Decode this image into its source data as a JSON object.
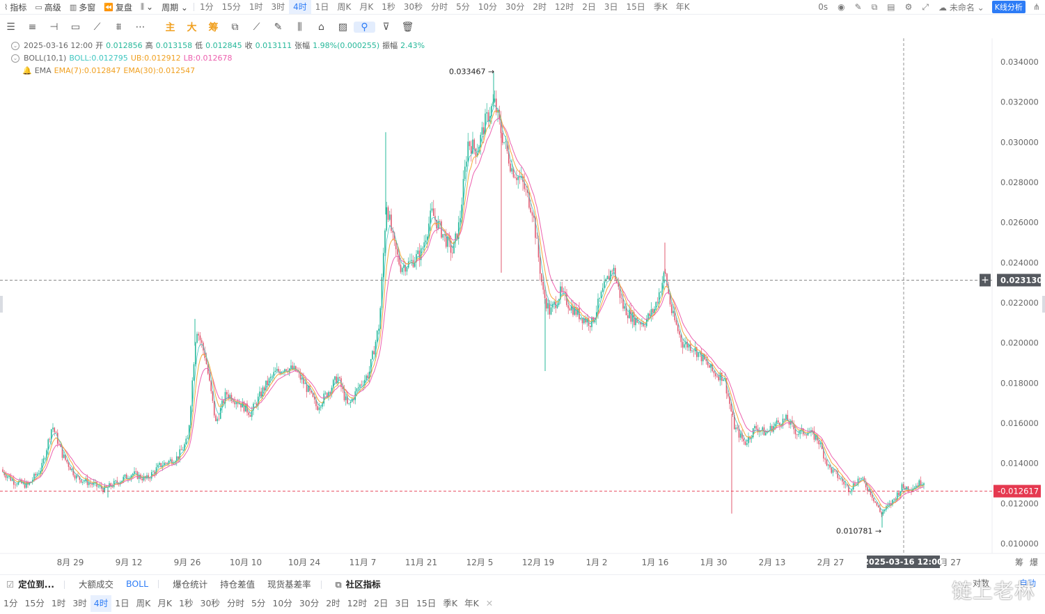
{
  "topbar": {
    "left": [
      {
        "icon": "⌇",
        "label": "指标",
        "name": "indicators-menu"
      },
      {
        "icon": "▭",
        "label": "高级",
        "name": "advanced-menu"
      },
      {
        "icon": "▥",
        "label": "多窗",
        "name": "multi-window-menu"
      },
      {
        "icon": "⏪",
        "label": "复盘",
        "name": "replay-menu"
      },
      {
        "icon": "⫼",
        "label": "⌄",
        "name": "chart-type-menu"
      },
      {
        "icon": "",
        "label": "周期 ⌄",
        "name": "period-menu"
      }
    ],
    "timeframes": [
      "1分",
      "15分",
      "1时",
      "3时",
      "4时",
      "1日",
      "周K",
      "月K",
      "1秒",
      "30秒",
      "分时",
      "5分",
      "10分",
      "30分",
      "2时",
      "12时",
      "2日",
      "3日",
      "15日",
      "季K",
      "年K"
    ],
    "active_timeframe": "4时",
    "right": {
      "seconds": "0s",
      "unnamed": "未命名 ⌄",
      "analysis_button": "K线分析"
    }
  },
  "toolbar2": {
    "tools": [
      "☰",
      "≡",
      "⊣",
      "▭",
      "⟋",
      "⩩",
      "⋯"
    ],
    "chars": [
      "主",
      "大",
      "筹"
    ],
    "tools2": [
      "⧉",
      "⟋",
      "✎",
      "⫼",
      "⌂",
      "▨",
      "⚲",
      "⊽",
      "🗑"
    ]
  },
  "legend": {
    "ohlc": {
      "date": "2025-03-16 12:00",
      "open_label": "开",
      "open": "0.012856",
      "high_label": "高",
      "high": "0.013158",
      "low_label": "低",
      "low": "0.012845",
      "close_label": "收",
      "close": "0.013111",
      "change_label": "张幅",
      "change": "1.98%(0.000255)",
      "amp_label": "振幅",
      "amp": "2.43%"
    },
    "boll": {
      "name": "BOLL(10,1)",
      "mid": "BOLL:0.012795",
      "ub": "UB:0.012912",
      "lb": "LB:0.012678"
    },
    "ema": {
      "name": "EMA",
      "ema7": "EMA(7):0.012847",
      "ema30": "EMA(30):0.012547"
    }
  },
  "chart_data": {
    "type": "candlestick",
    "instrument_interval": "4时",
    "ylim": [
      0.0095,
      0.0352
    ],
    "y_ticks": [
      "0.034000",
      "0.032000",
      "0.030000",
      "0.028000",
      "0.026000",
      "0.024000",
      "0.022000",
      "0.020000",
      "0.018000",
      "0.016000",
      "0.014000",
      "0.012000",
      "0.010000"
    ],
    "x_ticks": [
      "8月 29",
      "9月 12",
      "9月 26",
      "10月 10",
      "10月 24",
      "11月 7",
      "11月 21",
      "12月 5",
      "12月 19",
      "1月 2",
      "1月 16",
      "1月 30",
      "2月 13",
      "2月 27"
    ],
    "x_tick_partial": "月 27",
    "crosshair": {
      "price": "0.023130",
      "date": "2025-03-16 12:00"
    },
    "last_price": "0.012617",
    "max_label": "0.033467",
    "min_label": "0.010781",
    "colors": {
      "up": "#26b89a",
      "down": "#e0586f",
      "ema_short": "#f4a93b",
      "ema_long": "#ec5fae",
      "boll_mid": "#3fc6c0",
      "last": "#e53950",
      "crosshair_tag": "#55595f"
    },
    "approx_close_path": [
      [
        0,
        0.0137
      ],
      [
        20,
        0.0131
      ],
      [
        40,
        0.0129
      ],
      [
        60,
        0.0138
      ],
      [
        75,
        0.0159
      ],
      [
        90,
        0.0144
      ],
      [
        110,
        0.0133
      ],
      [
        130,
        0.013
      ],
      [
        150,
        0.0127
      ],
      [
        170,
        0.0131
      ],
      [
        190,
        0.0135
      ],
      [
        210,
        0.0132
      ],
      [
        230,
        0.0139
      ],
      [
        255,
        0.0143
      ],
      [
        270,
        0.0152
      ],
      [
        282,
        0.0208
      ],
      [
        295,
        0.0193
      ],
      [
        310,
        0.016
      ],
      [
        325,
        0.0175
      ],
      [
        345,
        0.017
      ],
      [
        360,
        0.0165
      ],
      [
        380,
        0.0178
      ],
      [
        395,
        0.0185
      ],
      [
        410,
        0.0188
      ],
      [
        425,
        0.0186
      ],
      [
        440,
        0.0178
      ],
      [
        455,
        0.0168
      ],
      [
        470,
        0.0175
      ],
      [
        485,
        0.0183
      ],
      [
        500,
        0.0168
      ],
      [
        515,
        0.0178
      ],
      [
        530,
        0.0185
      ],
      [
        545,
        0.021
      ],
      [
        555,
        0.027
      ],
      [
        565,
        0.025
      ],
      [
        575,
        0.0238
      ],
      [
        590,
        0.024
      ],
      [
        605,
        0.0245
      ],
      [
        620,
        0.0265
      ],
      [
        635,
        0.0255
      ],
      [
        650,
        0.0245
      ],
      [
        660,
        0.026
      ],
      [
        672,
        0.03
      ],
      [
        685,
        0.0296
      ],
      [
        697,
        0.031
      ],
      [
        710,
        0.032
      ],
      [
        720,
        0.0305
      ],
      [
        735,
        0.0287
      ],
      [
        750,
        0.028
      ],
      [
        765,
        0.0266
      ],
      [
        780,
        0.0225
      ],
      [
        790,
        0.0215
      ],
      [
        805,
        0.0225
      ],
      [
        820,
        0.0218
      ],
      [
        835,
        0.0213
      ],
      [
        850,
        0.021
      ],
      [
        865,
        0.0225
      ],
      [
        880,
        0.0238
      ],
      [
        895,
        0.0218
      ],
      [
        910,
        0.0212
      ],
      [
        925,
        0.021
      ],
      [
        940,
        0.0217
      ],
      [
        955,
        0.0235
      ],
      [
        965,
        0.0215
      ],
      [
        980,
        0.02
      ],
      [
        995,
        0.0198
      ],
      [
        1010,
        0.0192
      ],
      [
        1025,
        0.0185
      ],
      [
        1040,
        0.0183
      ],
      [
        1055,
        0.0158
      ],
      [
        1070,
        0.015
      ],
      [
        1085,
        0.0158
      ],
      [
        1100,
        0.0155
      ],
      [
        1115,
        0.016
      ],
      [
        1130,
        0.0162
      ],
      [
        1145,
        0.0155
      ],
      [
        1160,
        0.0156
      ],
      [
        1175,
        0.0152
      ],
      [
        1190,
        0.0138
      ],
      [
        1205,
        0.0133
      ],
      [
        1220,
        0.0127
      ],
      [
        1235,
        0.0133
      ],
      [
        1250,
        0.0126
      ],
      [
        1265,
        0.0115
      ],
      [
        1280,
        0.012
      ],
      [
        1295,
        0.0128
      ],
      [
        1310,
        0.0128
      ],
      [
        1325,
        0.0131
      ]
    ]
  },
  "bottom1": [
    {
      "label": "定位到...",
      "name": "locate-button",
      "cls": "bold",
      "icon": "☑"
    },
    {
      "label": "大额成交",
      "name": "large-trades-tab",
      "cls": ""
    },
    {
      "label": "BOLL",
      "name": "boll-tab",
      "cls": "blue"
    },
    {
      "label": "爆仓统计",
      "name": "liquidation-stats-tab",
      "cls": ""
    },
    {
      "label": "持仓差值",
      "name": "position-diff-tab",
      "cls": ""
    },
    {
      "label": "现货基差率",
      "name": "spot-basis-tab",
      "cls": ""
    },
    {
      "label": "社区指标",
      "name": "community-indicators-tab",
      "cls": "bold",
      "icon": "⧉"
    }
  ],
  "bottom2": {
    "timeframes": [
      "1分",
      "15分",
      "1时",
      "3时",
      "4时",
      "1日",
      "周K",
      "月K",
      "1秒",
      "30秒",
      "分时",
      "5分",
      "10分",
      "30分",
      "2时",
      "12时",
      "2日",
      "3日",
      "15日",
      "季K",
      "年K"
    ],
    "active": "4时",
    "close": "✕"
  },
  "corner_right": {
    "a": "筹",
    "b": "爆",
    "c": "对数",
    "d": "自动"
  },
  "watermark": "链上老林"
}
